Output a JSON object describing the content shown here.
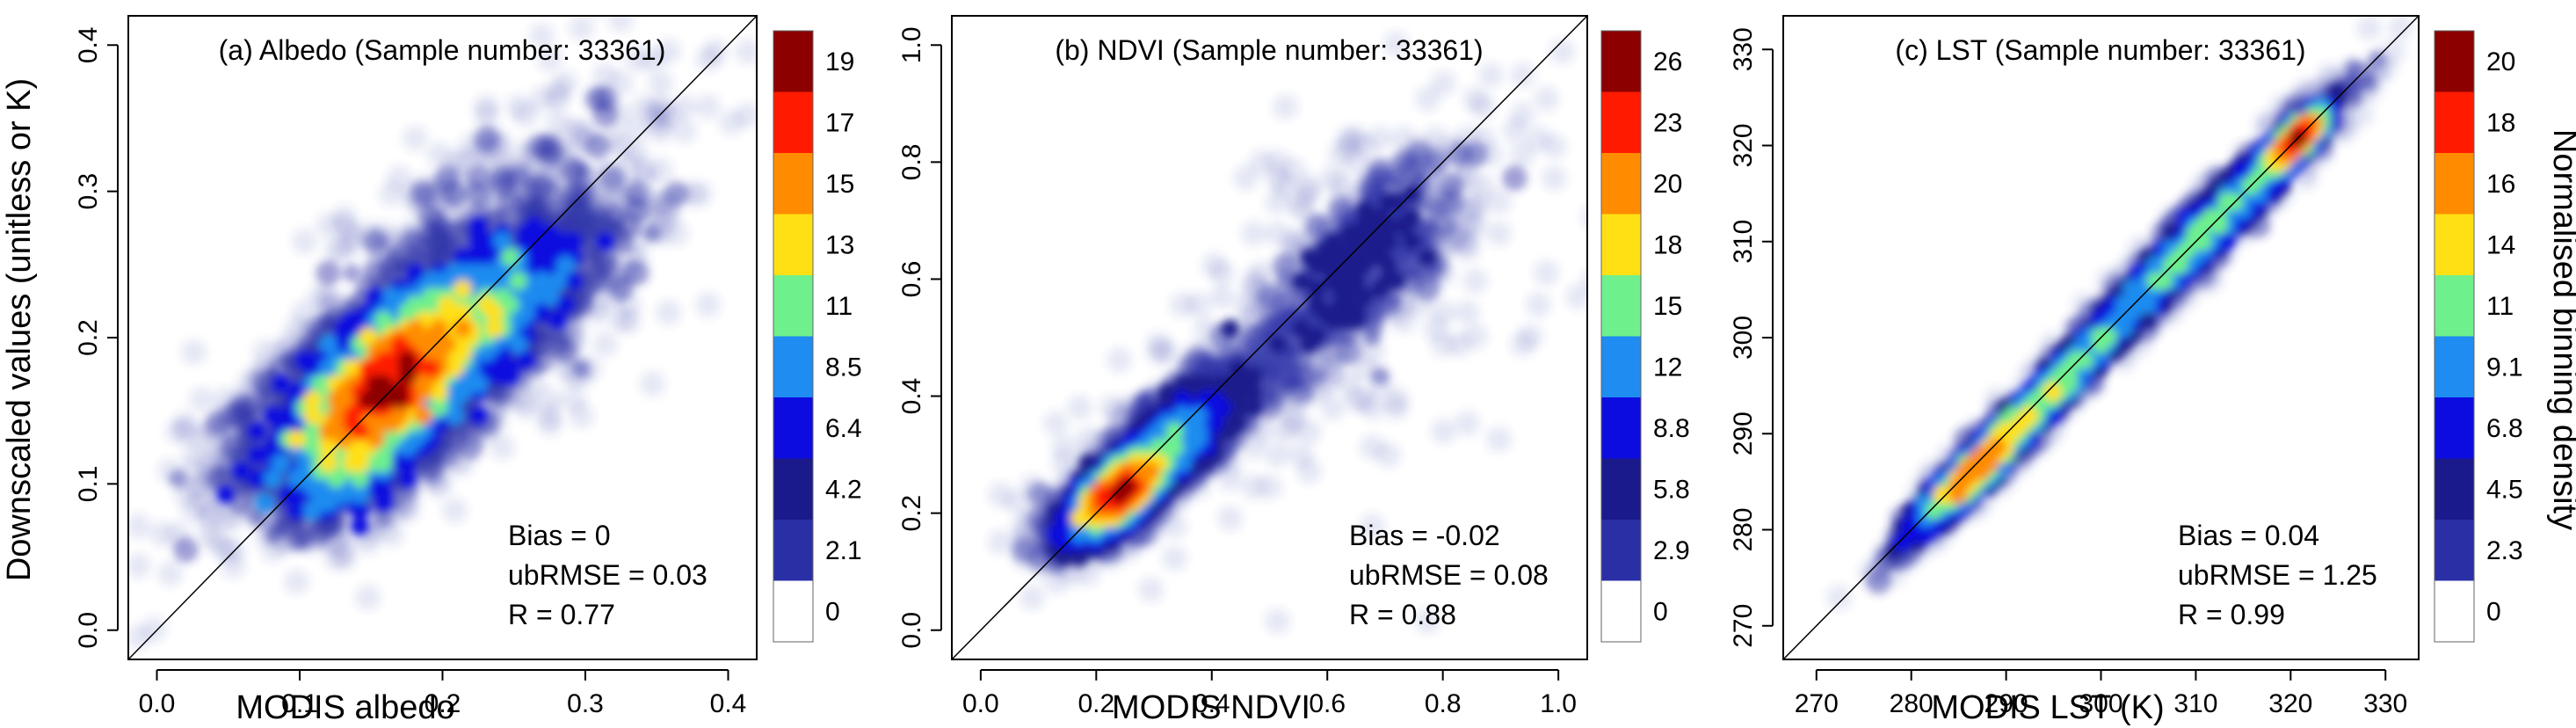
{
  "figure": {
    "ylabel": "Downscaled values (unitless or K)",
    "colorbar_label": "Normalised binning density"
  },
  "palette": [
    "#ffffff",
    "#2a2fa6",
    "#1a1a8c",
    "#0c0ce0",
    "#1e8cf0",
    "#6ef08c",
    "#ffe014",
    "#ff8c00",
    "#ff1a00",
    "#8c0000"
  ],
  "chart_data": [
    {
      "type": "scatter",
      "subtype": "density-scatter",
      "title": "(a) Albedo (Sample number: 33361)",
      "xlabel": "MODIS albedo",
      "ylabel": "Downscaled values (unitless or K)",
      "xlim": [
        -0.02,
        0.42
      ],
      "ylim": [
        -0.02,
        0.42
      ],
      "xticks": [
        0.0,
        0.1,
        0.2,
        0.3,
        0.4
      ],
      "xtick_labels": [
        "0.0",
        "0.1",
        "0.2",
        "0.3",
        "0.4"
      ],
      "yticks": [
        0.0,
        0.1,
        0.2,
        0.3,
        0.4
      ],
      "ytick_labels": [
        "0.0",
        "0.1",
        "0.2",
        "0.3",
        "0.4"
      ],
      "one_to_one_line": true,
      "stats": [
        "Bias = 0",
        "ubRMSE = 0.03",
        "R = 0.77"
      ],
      "sample_number": 33361,
      "colorbar_ticks": [
        "0",
        "2.1",
        "4.2",
        "6.4",
        "8.5",
        "11",
        "13",
        "15",
        "17",
        "19"
      ],
      "clusters": [
        {
          "x": 0.185,
          "y": 0.19,
          "sx": 0.055,
          "sy": 0.04,
          "rho": 0.75,
          "w": 1.0
        },
        {
          "x": 0.16,
          "y": 0.165,
          "sx": 0.025,
          "sy": 0.025,
          "rho": 0.6,
          "w": 0.5
        },
        {
          "x": 0.215,
          "y": 0.23,
          "sx": 0.07,
          "sy": 0.07,
          "rho": 0.7,
          "w": 0.2
        },
        {
          "x": 0.14,
          "y": 0.12,
          "sx": 0.03,
          "sy": 0.025,
          "rho": 0.5,
          "w": 0.25
        }
      ]
    },
    {
      "type": "scatter",
      "subtype": "density-scatter",
      "title": "(b) NDVI (Sample number: 33361)",
      "xlabel": "MODIS NDVI",
      "xlim": [
        -0.05,
        1.05
      ],
      "ylim": [
        -0.05,
        1.05
      ],
      "xticks": [
        0.0,
        0.2,
        0.4,
        0.6,
        0.8,
        1.0
      ],
      "xtick_labels": [
        "0.0",
        "0.2",
        "0.4",
        "0.6",
        "0.8",
        "1.0"
      ],
      "yticks": [
        0.0,
        0.2,
        0.4,
        0.6,
        0.8,
        1.0
      ],
      "ytick_labels": [
        "0.0",
        "0.2",
        "0.4",
        "0.6",
        "0.8",
        "1.0"
      ],
      "one_to_one_line": true,
      "stats": [
        "Bias = -0.02",
        "ubRMSE = 0.08",
        "R = 0.88"
      ],
      "sample_number": 33361,
      "colorbar_ticks": [
        "0",
        "2.9",
        "5.8",
        "8.8",
        "12",
        "15",
        "18",
        "20",
        "23",
        "26"
      ],
      "clusters": [
        {
          "x": 0.24,
          "y": 0.235,
          "sx": 0.045,
          "sy": 0.04,
          "rho": 0.7,
          "w": 1.0
        },
        {
          "x": 0.34,
          "y": 0.33,
          "sx": 0.05,
          "sy": 0.045,
          "rho": 0.6,
          "w": 0.3
        },
        {
          "x": 0.5,
          "y": 0.47,
          "sx": 0.15,
          "sy": 0.12,
          "rho": 0.85,
          "w": 0.09
        },
        {
          "x": 0.68,
          "y": 0.66,
          "sx": 0.07,
          "sy": 0.07,
          "rho": 0.6,
          "w": 0.08
        },
        {
          "x": 0.62,
          "y": 0.55,
          "sx": 0.2,
          "sy": 0.2,
          "rho": 0.5,
          "w": 0.025
        }
      ]
    },
    {
      "type": "scatter",
      "subtype": "density-scatter",
      "title": "(c) LST (Sample number: 33361)",
      "xlabel": "MODIS LST (K)",
      "xlim": [
        266.5,
        333.5
      ],
      "ylim": [
        266.5,
        333.5
      ],
      "xticks": [
        270,
        280,
        290,
        300,
        310,
        320,
        330
      ],
      "xtick_labels": [
        "270",
        "280",
        "290",
        "300",
        "310",
        "320",
        "330"
      ],
      "yticks": [
        270,
        280,
        290,
        300,
        310,
        320,
        330
      ],
      "ytick_labels": [
        "270",
        "280",
        "290",
        "300",
        "310",
        "320",
        "330"
      ],
      "one_to_one_line": true,
      "stats": [
        "Bias = 0.04",
        "ubRMSE = 1.25",
        "R = 0.99"
      ],
      "sample_number": 33361,
      "colorbar_ticks": [
        "0",
        "2.3",
        "4.5",
        "6.8",
        "9.1",
        "11",
        "14",
        "16",
        "18",
        "20"
      ],
      "clusters": [
        {
          "x": 287.0,
          "y": 286.5,
          "sx": 3.5,
          "sy": 3.5,
          "rho": 0.93,
          "w": 0.95
        },
        {
          "x": 310.0,
          "y": 310.0,
          "sx": 6.5,
          "sy": 6.5,
          "rho": 0.97,
          "w": 1.0
        },
        {
          "x": 296.0,
          "y": 295.5,
          "sx": 3.2,
          "sy": 3.2,
          "rho": 0.93,
          "w": 0.4
        },
        {
          "x": 320.5,
          "y": 320.5,
          "sx": 1.8,
          "sy": 1.8,
          "rho": 0.85,
          "w": 0.5
        }
      ]
    }
  ]
}
